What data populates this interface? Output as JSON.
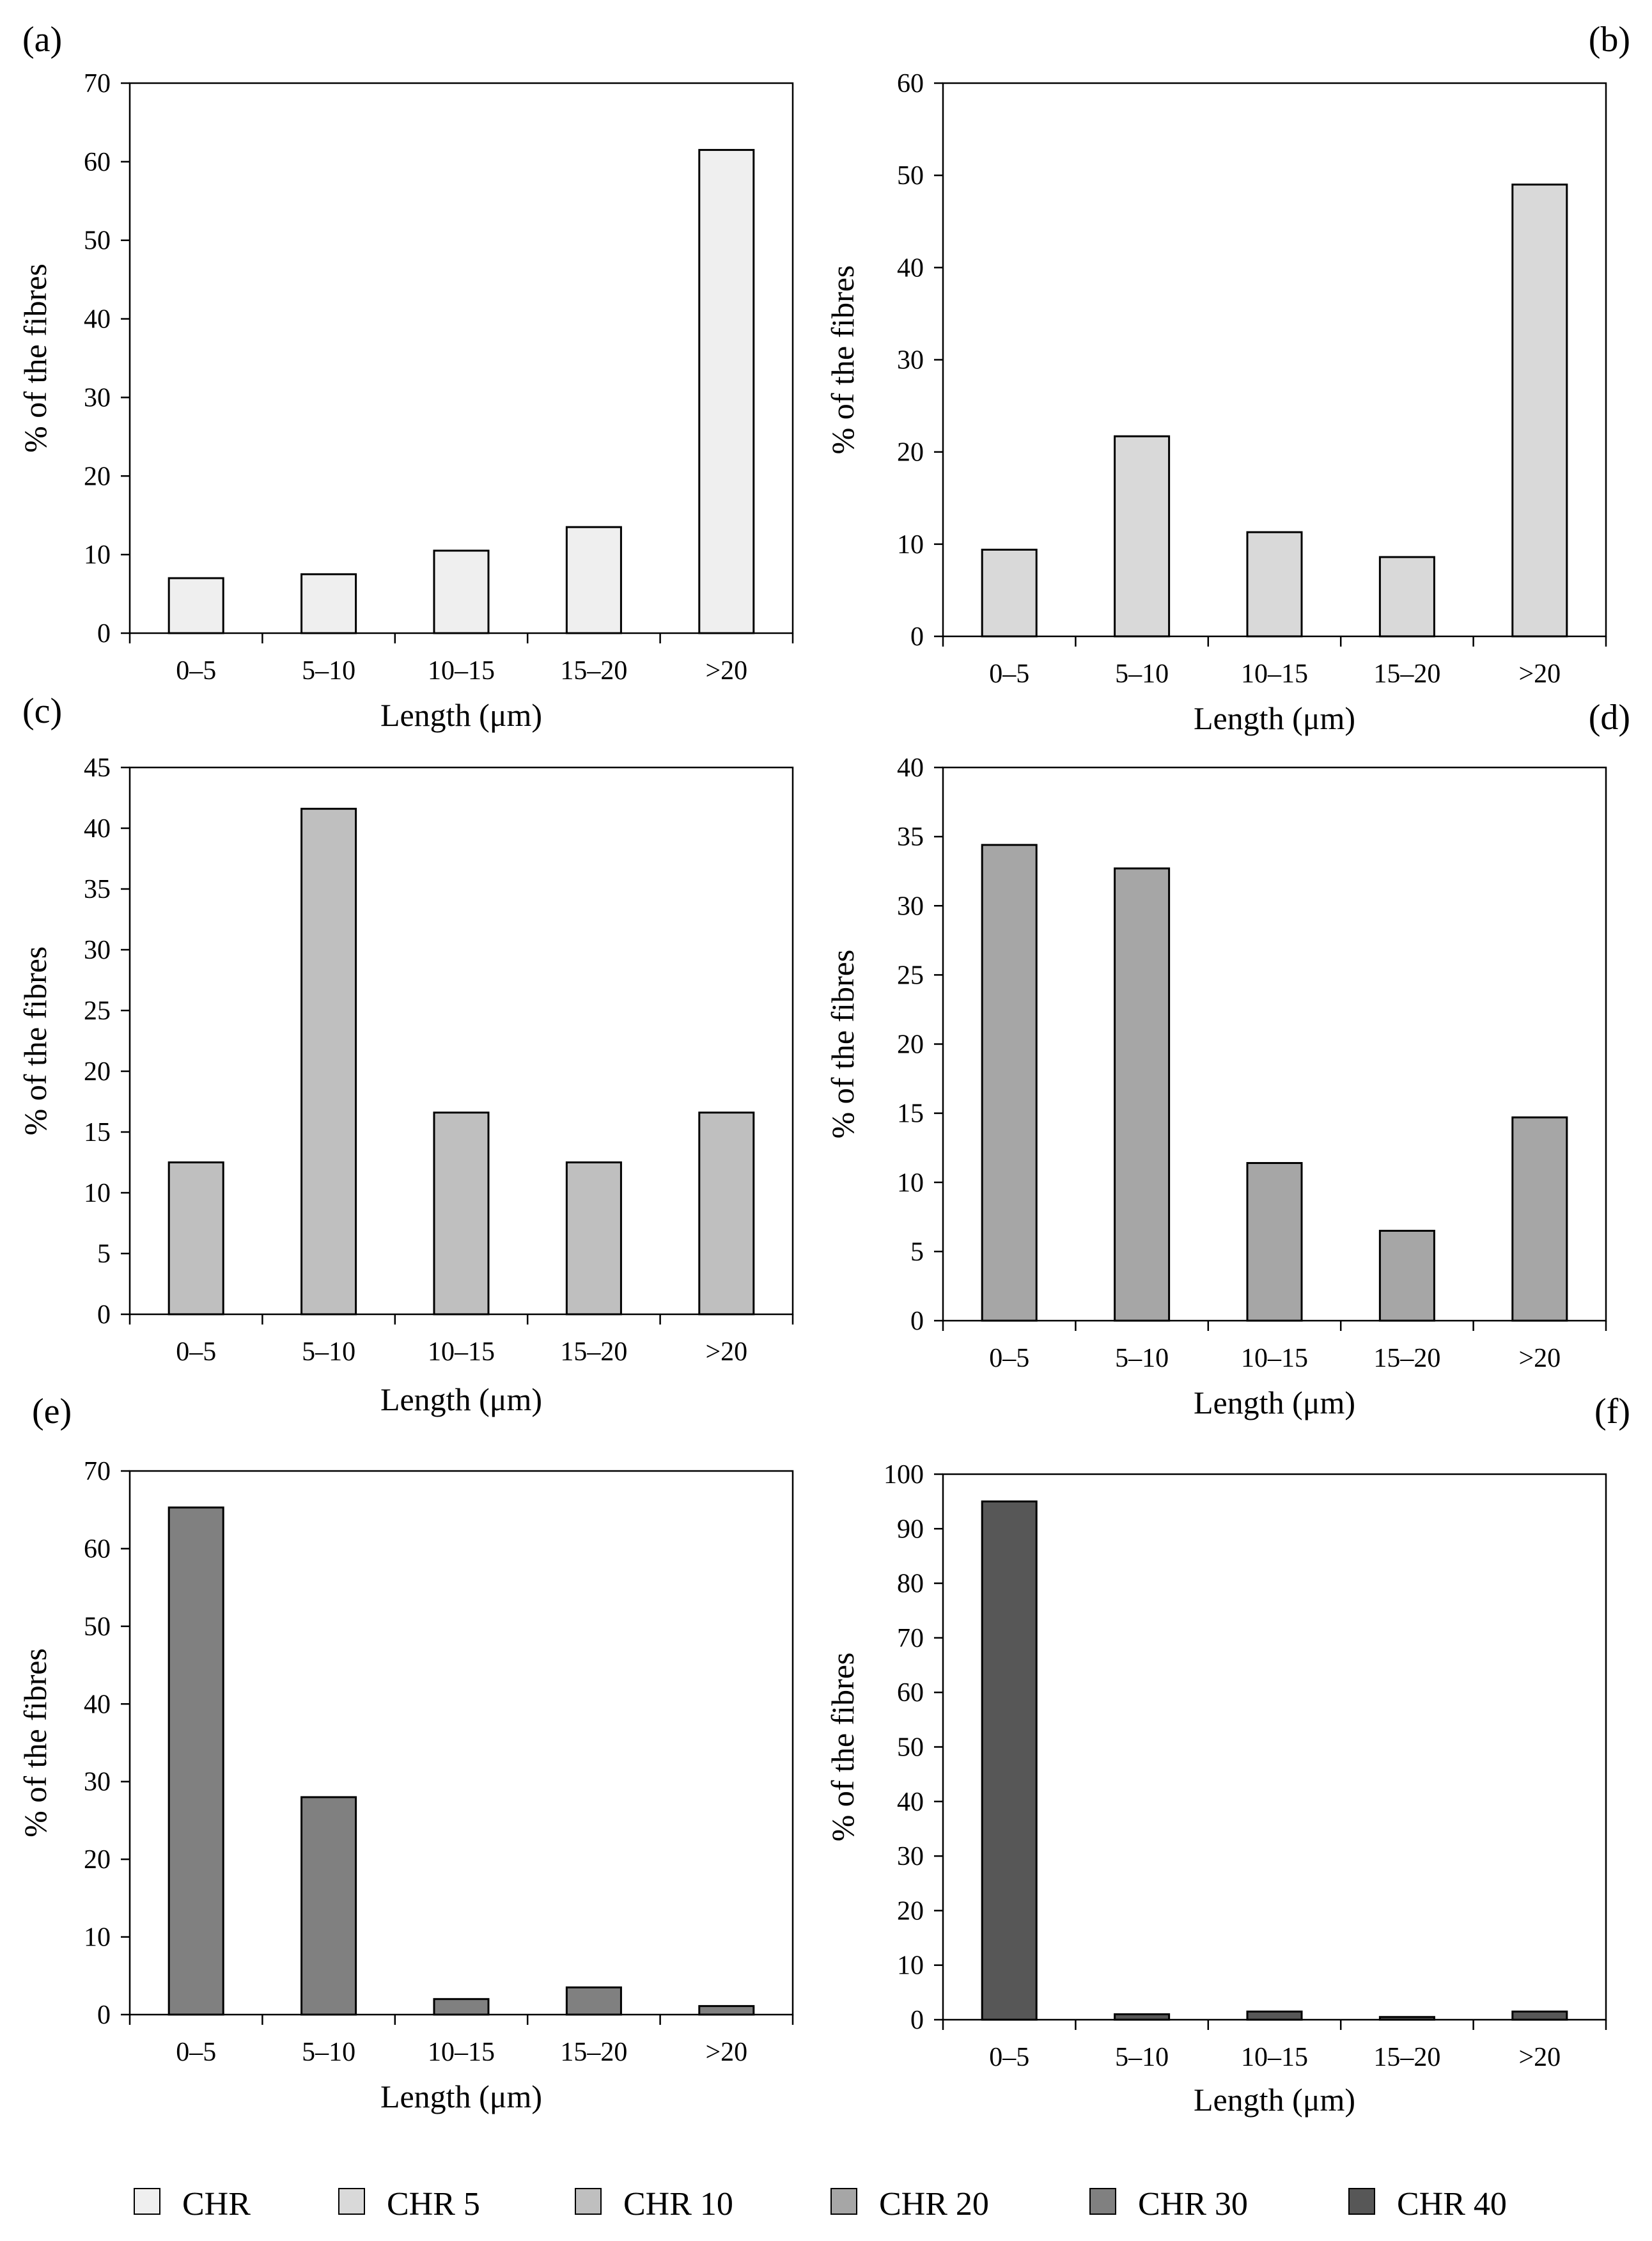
{
  "colors": {
    "CHR": "#efefef",
    "CHR 5": "#d9d9d9",
    "CHR 10": "#bfbfbf",
    "CHR 20": "#a6a6a6",
    "CHR 30": "#808080",
    "CHR 40": "#575757"
  },
  "legend": [
    "CHR",
    "CHR 5",
    "CHR 10",
    "CHR 20",
    "CHR 30",
    "CHR 40"
  ],
  "chart_data": [
    {
      "type": "bar",
      "panel": "(a)",
      "series": "CHR",
      "categories": [
        "0–5",
        "5–10",
        "10–15",
        "15–20",
        ">20"
      ],
      "values": [
        7,
        7.5,
        10.5,
        13.5,
        61.5
      ],
      "xlabel": "Length (μm)",
      "ylabel": "% of the fibres",
      "ylim": [
        0,
        70
      ],
      "yticks": [
        0,
        10,
        20,
        30,
        40,
        50,
        60,
        70
      ]
    },
    {
      "type": "bar",
      "panel": "(b)",
      "series": "CHR 5",
      "categories": [
        "0–5",
        "5–10",
        "10–15",
        "15–20",
        ">20"
      ],
      "values": [
        9.4,
        21.7,
        11.3,
        8.6,
        49
      ],
      "xlabel": "Length (μm)",
      "ylabel": "% of the fibres",
      "ylim": [
        0,
        60
      ],
      "yticks": [
        0,
        10,
        20,
        30,
        40,
        50,
        60
      ]
    },
    {
      "type": "bar",
      "panel": "(c)",
      "series": "CHR 10",
      "categories": [
        "0–5",
        "5–10",
        "10–15",
        "15–20",
        ">20"
      ],
      "values": [
        12.5,
        41.6,
        16.6,
        12.5,
        16.6
      ],
      "xlabel": "Length (μm)",
      "ylabel": "% of the fibres",
      "ylim": [
        0,
        45
      ],
      "yticks": [
        0,
        5,
        10,
        15,
        20,
        25,
        30,
        35,
        40,
        45
      ]
    },
    {
      "type": "bar",
      "panel": "(d)",
      "series": "CHR 20",
      "categories": [
        "0–5",
        "5–10",
        "10–15",
        "15–20",
        ">20"
      ],
      "values": [
        34.4,
        32.7,
        11.4,
        6.5,
        14.7
      ],
      "xlabel": "Length (μm)",
      "ylabel": "% of the fibres",
      "ylim": [
        0,
        40
      ],
      "yticks": [
        0,
        5,
        10,
        15,
        20,
        25,
        30,
        35,
        40
      ]
    },
    {
      "type": "bar",
      "panel": "(e)",
      "series": "CHR 30",
      "categories": [
        "0–5",
        "5–10",
        "10–15",
        "15–20",
        ">20"
      ],
      "values": [
        65.3,
        28,
        2,
        3.5,
        1.1
      ],
      "xlabel": "Length (μm)",
      "ylabel": "% of the fibres",
      "ylim": [
        0,
        70
      ],
      "yticks": [
        0,
        10,
        20,
        30,
        40,
        50,
        60,
        70
      ]
    },
    {
      "type": "bar",
      "panel": "(f)",
      "series": "CHR 40",
      "categories": [
        "0–5",
        "5–10",
        "10–15",
        "15–20",
        ">20"
      ],
      "values": [
        95,
        1,
        1.5,
        0.5,
        1.5
      ],
      "xlabel": "Length (μm)",
      "ylabel": "% of the fibres",
      "ylim": [
        0,
        100
      ],
      "yticks": [
        0,
        10,
        20,
        30,
        40,
        50,
        60,
        70,
        80,
        90,
        100
      ]
    }
  ]
}
